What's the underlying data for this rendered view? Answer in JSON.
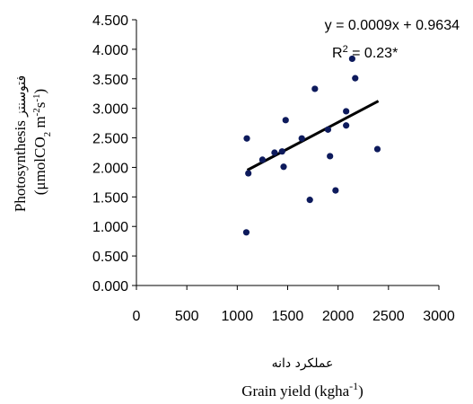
{
  "chart_data": {
    "type": "scatter",
    "title": "",
    "xlim": [
      0,
      3000
    ],
    "ylim": [
      0,
      4.5
    ],
    "x_ticks": [
      "0",
      "500",
      "1000",
      "1500",
      "2000",
      "2500",
      "3000"
    ],
    "y_ticks": [
      "0.000",
      "0.500",
      "1.000",
      "1.500",
      "2.000",
      "2.500",
      "3.000",
      "3.500",
      "4.000",
      "4.500"
    ],
    "x_label_fa": "عملکرد دانه",
    "x_label_en": "Grain yield (kgha",
    "x_label_sup": "-1",
    "x_label_end": ")",
    "y_label_en": "Photosynthesis",
    "y_label_fa": "فتوسنتز",
    "y_label_unit": "(μmolCO",
    "y_label_unit_sub": "2",
    "y_label_unit_mid": " m",
    "y_label_sup1": "-2",
    "y_label_unit_mid2": "s",
    "y_label_sup2": "-1",
    "y_label_unit_end": ")",
    "equation": "y = 0.0009x + 0.9634",
    "r2_base": "R",
    "r2_sup": "2",
    "r2_rest": " = 0.23*",
    "trendline": {
      "slope": 0.0009,
      "intercept": 0.9634,
      "x_range": [
        1100,
        2400
      ]
    },
    "points": [
      {
        "x": 1090,
        "y": 0.9
      },
      {
        "x": 1095,
        "y": 2.49
      },
      {
        "x": 1110,
        "y": 1.9
      },
      {
        "x": 1250,
        "y": 2.13
      },
      {
        "x": 1370,
        "y": 2.25
      },
      {
        "x": 1445,
        "y": 2.27
      },
      {
        "x": 1460,
        "y": 2.01
      },
      {
        "x": 1480,
        "y": 2.8
      },
      {
        "x": 1640,
        "y": 2.49
      },
      {
        "x": 1720,
        "y": 1.45
      },
      {
        "x": 1770,
        "y": 3.33
      },
      {
        "x": 1900,
        "y": 2.64
      },
      {
        "x": 1920,
        "y": 2.19
      },
      {
        "x": 1975,
        "y": 1.61
      },
      {
        "x": 2080,
        "y": 2.95
      },
      {
        "x": 2080,
        "y": 2.71
      },
      {
        "x": 2140,
        "y": 3.84
      },
      {
        "x": 2170,
        "y": 3.51
      },
      {
        "x": 2390,
        "y": 2.31
      }
    ],
    "point_color": "#0d1a5c",
    "line_color": "#000000"
  }
}
